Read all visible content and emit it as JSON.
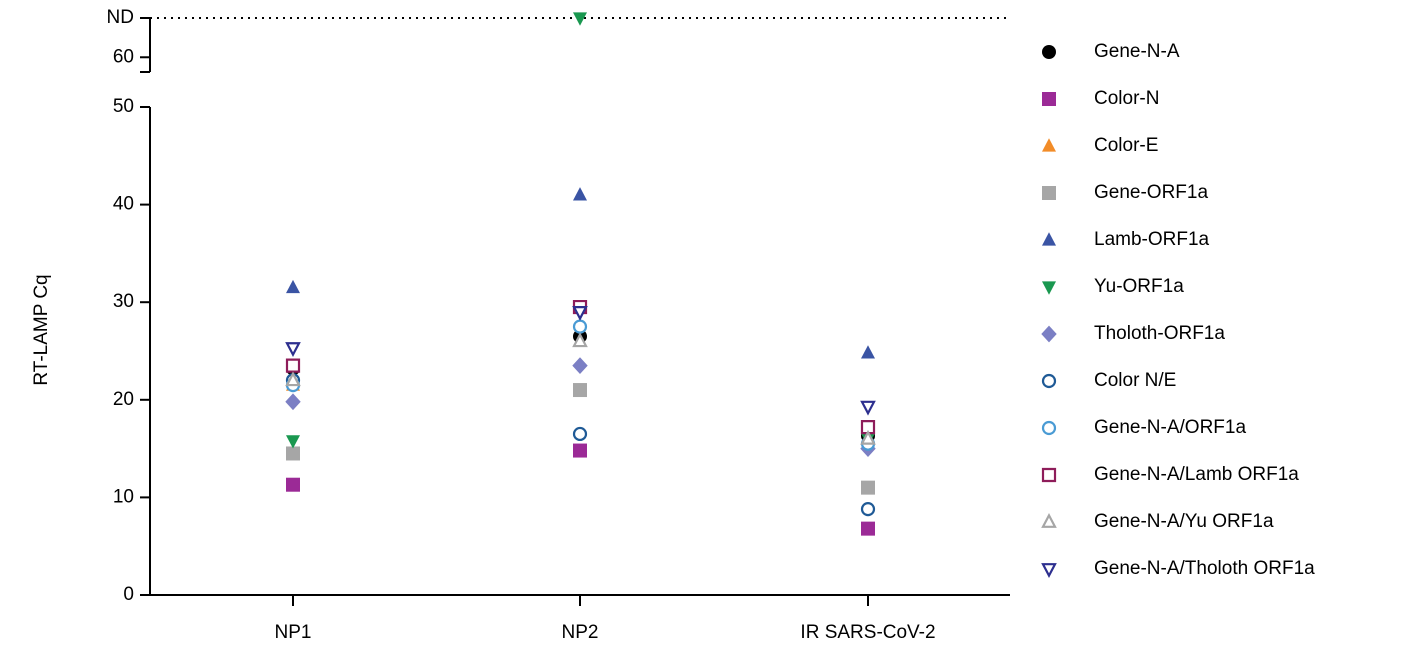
{
  "chart_data": {
    "type": "dot",
    "y_label": "RT-LAMP Cq",
    "categories": [
      "NP1",
      "NP2",
      "IR SARS-CoV-2"
    ],
    "y_segments": [
      {
        "ylim": [
          0,
          50
        ],
        "yticks": [
          0,
          10,
          20,
          30,
          40,
          50
        ]
      },
      {
        "ylim": [
          58.5,
          64
        ],
        "yticks": [
          60,
          {
            "value": 64,
            "label": "ND"
          }
        ],
        "dotted_line": true
      }
    ],
    "series": [
      {
        "name": "Gene-N-A",
        "color": "#000000",
        "marker": "circle",
        "filled": true,
        "values": [
          23.2,
          26.5,
          16.3
        ]
      },
      {
        "name": "Color-N",
        "color": "#9b2a96",
        "marker": "square",
        "filled": true,
        "values": [
          11.3,
          14.8,
          6.8
        ]
      },
      {
        "name": "Color-E",
        "color": "#f28c28",
        "marker": "triangle",
        "filled": true,
        "values": [
          21.5,
          26,
          16
        ]
      },
      {
        "name": "Gene-ORF1a",
        "color": "#a6a6a6",
        "marker": "square",
        "filled": true,
        "values": [
          14.5,
          21,
          11
        ]
      },
      {
        "name": "Lamb-ORF1a",
        "color": "#3a54a4",
        "marker": "triangle",
        "filled": true,
        "values": [
          31.5,
          41,
          24.8
        ]
      },
      {
        "name": "Yu-ORF1a",
        "color": "#1a9850",
        "marker": "triangle-down",
        "filled": true,
        "values": [
          15.8,
          64,
          16
        ]
      },
      {
        "name": "Tholoth-ORF1a",
        "color": "#7b7fc4",
        "marker": "diamond",
        "filled": true,
        "values": [
          19.8,
          23.5,
          15
        ]
      },
      {
        "name": "Color N/E",
        "color": "#1f5a96",
        "marker": "circle",
        "filled": false,
        "values": [
          22,
          16.5,
          8.8
        ]
      },
      {
        "name": "Gene-N-A/ORF1a",
        "color": "#4a9bd4",
        "marker": "circle",
        "filled": false,
        "values": [
          21.5,
          27.5,
          15.5
        ]
      },
      {
        "name": "Gene-N-A/Lamb ORF1a",
        "color": "#8e1c5a",
        "marker": "square",
        "filled": false,
        "values": [
          23.5,
          29.5,
          17.2
        ]
      },
      {
        "name": "Gene-N-A/Yu ORF1a",
        "color": "#a6a6a6",
        "marker": "triangle",
        "filled": false,
        "values": [
          22,
          26,
          16
        ]
      },
      {
        "name": "Gene-N-A/Tholoth ORF1a",
        "color": "#2d2f8f",
        "marker": "triangle-down",
        "filled": false,
        "values": [
          25.3,
          29,
          19.3
        ]
      }
    ]
  }
}
